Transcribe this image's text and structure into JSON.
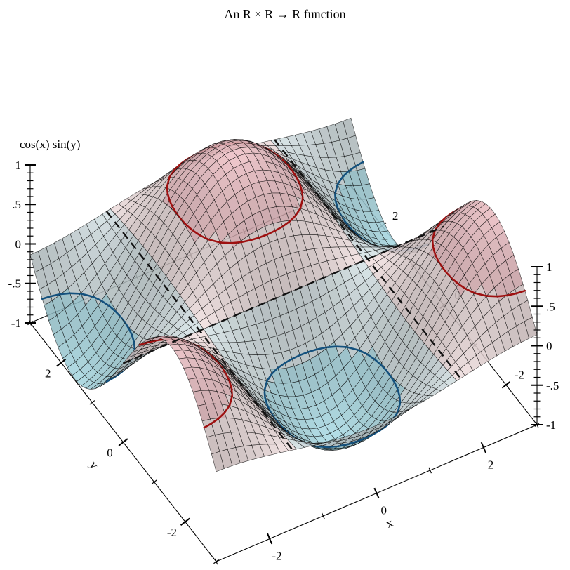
{
  "title": "An R × R → R function",
  "plot": {
    "z_axis_label": "cos(x) sin(y)",
    "x_axis_label": "x",
    "y_axis_label": "y",
    "background": "#ffffff"
  },
  "chart_data": {
    "type": "surface",
    "title": "An R × R → R function",
    "formula": "z = cos(x) * sin(y)",
    "formula_js": "Math.cos(x)*Math.sin(y)",
    "xlabel": "x",
    "ylabel": "y",
    "zlabel": "cos(x) sin(y)",
    "x_domain": [
      -3,
      3
    ],
    "y_domain": [
      -3,
      3
    ],
    "z_range": [
      -1,
      1
    ],
    "samples": 41,
    "grid": false,
    "legend": "none",
    "x_ticks": {
      "major": [
        -2,
        0,
        2
      ],
      "major_labels": [
        "-2",
        "0",
        "2"
      ],
      "minor": [
        -3,
        -1,
        1,
        3
      ]
    },
    "y_ticks": {
      "major": [
        2,
        0,
        -2
      ],
      "major_labels": [
        "2",
        "0",
        "-2"
      ],
      "minor": [
        3,
        1,
        -1,
        -3
      ]
    },
    "z_ticks": {
      "major": [
        1,
        0.5,
        0,
        -0.5,
        -1
      ],
      "major_labels": [
        "1",
        ".5",
        "0",
        "-.5",
        "-1"
      ],
      "minor_step": 0.1
    },
    "contour_levels": [
      {
        "level": 0.5,
        "color": "#9e1010",
        "style": "solid",
        "width": 2.6
      },
      {
        "level": -0.5,
        "color": "#14517d",
        "style": "solid",
        "width": 2.6
      },
      {
        "level": 0.0,
        "color": "#111111",
        "style": "dashed",
        "width": 2.4,
        "dash": "11 8"
      }
    ],
    "height_bands": [
      {
        "range": [
          -1.0,
          -0.5
        ],
        "color": "#a8d9e3"
      },
      {
        "range": [
          -0.5,
          0.0
        ],
        "color": "#d6e3e6"
      },
      {
        "range": [
          0.0,
          0.5
        ],
        "color": "#f2e1e1"
      },
      {
        "range": [
          0.5,
          1.0
        ],
        "color": "#edbfc4"
      }
    ],
    "mesh_line_color": "#1a1a1a",
    "axis_color": "#000000"
  }
}
